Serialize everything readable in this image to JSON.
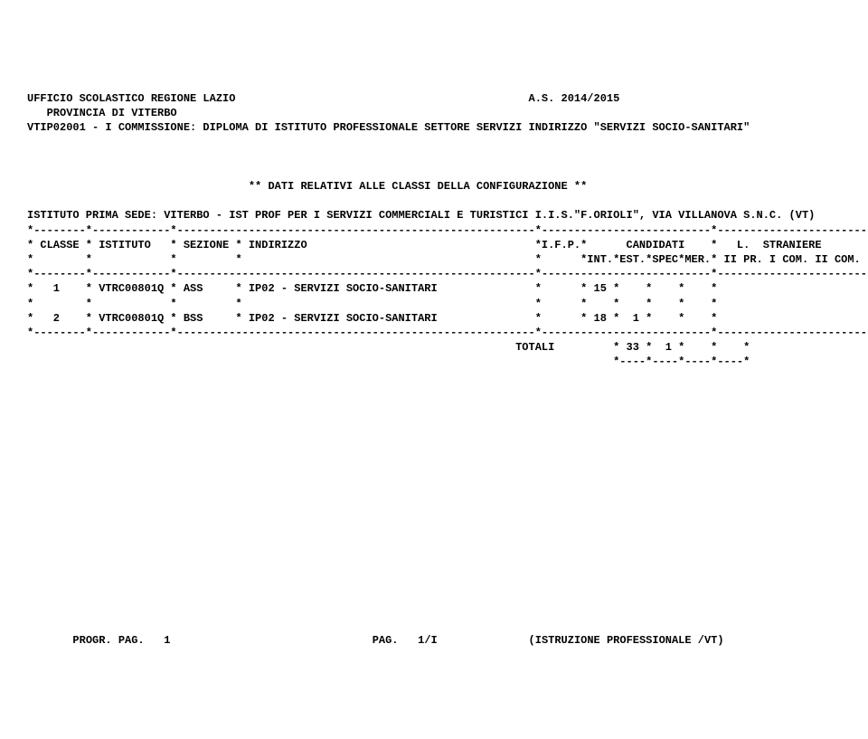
{
  "header": {
    "office": "UFFICIO SCOLASTICO REGIONE LAZIO",
    "year": "A.S. 2014/2015",
    "province": "PROVINCIA DI VITERBO",
    "commission": "VTIP02001 - I COMMISSIONE: DIPLOMA DI ISTITUTO PROFESSIONALE SETTORE SERVIZI INDIRIZZO \"SERVIZI SOCIO-SANITARI\""
  },
  "config": {
    "title": "** DATI RELATIVI ALLE CLASSI DELLA CONFIGURAZIONE **",
    "institute": "ISTITUTO PRIMA SEDE: VITERBO - IST PROF PER I SERVIZI COMMERCIALI E TURISTICI I.I.S.\"F.ORIOLI\", VIA VILLANOVA S.N.C. (VT)"
  },
  "table": {
    "sep_top": "*--------*------------*-------------------------------------------------------*--------------------------*-----------------------*",
    "hdr1": "* CLASSE * ISTITUTO   * SEZIONE * INDIRIZZO                                   *I.F.P.*      CANDIDATI    *   L.  STRANIERE       *",
    "hdr2": "*        *            *         *                                             *      *INT.*EST.*SPEC*MER.* II PR. I COM. II COM. *",
    "sep_mid": "*--------*------------*-------------------------------------------------------*--------------------------*-----------------------*",
    "row1": "*   1    * VTRC00801Q * ASS     * IP02 - SERVIZI SOCIO-SANITARI               *      * 15 *    *    *    *                       *",
    "blank": "*        *            *         *                                             *      *    *    *    *    *                       *",
    "row2": "*   2    * VTRC00801Q * BSS     * IP02 - SERVIZI SOCIO-SANITARI               *      * 18 *  1 *    *    *                       *",
    "sep_bot": "*--------*------------*-------------------------------------------------------*--------------------------*-----------------------*",
    "totals": "                                                                           TOTALI         * 33 *  1 *    *    *",
    "dashes": "                                                                                          *----*----*----*----*"
  },
  "footer": {
    "left": "PROGR. PAG.   1",
    "center": "PAG.   1/I",
    "right": "(ISTRUZIONE PROFESSIONALE /VT)"
  }
}
